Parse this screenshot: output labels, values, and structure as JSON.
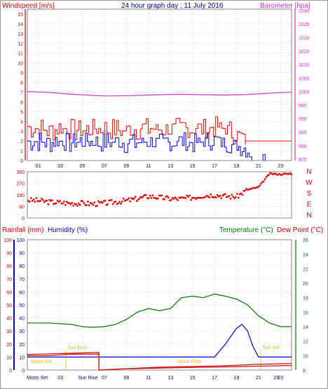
{
  "header": {
    "left_title": "Windspeed [m/s]",
    "center_title": "24 hour graph day : 11 July 2016",
    "right_title": "Barometer [hpa]"
  },
  "bottom_header": {
    "rainfall_label": "Rainfall (mm)",
    "humidity_label": "Humidity (%)",
    "temperature_label": "Temperature (°C)",
    "dewpoint_label": "Dew Point (°C)"
  },
  "colors": {
    "windspeed": "#ff0000",
    "gust": "#ff0000",
    "average_wind": "#0000ff",
    "barometer": "#cc33cc",
    "wind_direction": "#e01010",
    "rainfall": "#cc0000",
    "humidity": "#0000cc",
    "temperature": "#007700",
    "dewpoint": "#cc0000",
    "moon_sun_text": "#ddc000",
    "grid": "#bfbfbf"
  },
  "chart_data": [
    {
      "type": "line",
      "id": "wind-barometer",
      "title": "",
      "x_ticks": [
        "01",
        "03",
        "05",
        "07",
        "09",
        "11",
        "13",
        "15",
        "17",
        "19",
        "21",
        "23"
      ],
      "left_axis": {
        "label": "Windspeed [m/s]",
        "ticks": [
          0,
          1,
          2,
          3,
          4,
          5,
          6,
          7,
          8,
          9,
          10,
          11,
          12,
          13,
          14,
          15
        ],
        "ylim": [
          0,
          15.5
        ]
      },
      "right_axis": {
        "label": "Barometer [hpa]",
        "ticks": [
          975,
          980,
          985,
          990,
          995,
          1000,
          1005,
          1010,
          1015,
          1020,
          1025,
          1030
        ],
        "ylim": [
          974.5,
          1030.5
        ]
      },
      "series": [
        {
          "name": "Gust",
          "axis": "left",
          "hours": [
            0,
            1,
            2,
            3,
            4,
            5,
            6,
            7,
            8,
            9,
            10,
            11,
            12,
            13,
            14,
            15,
            16,
            17,
            18,
            19,
            20,
            21,
            22,
            23,
            24
          ],
          "values": [
            3.5,
            3.2,
            3.0,
            3.3,
            3.2,
            3.0,
            3.2,
            3.4,
            3.1,
            3.0,
            3.2,
            3.3,
            3.1,
            3.2,
            3.4,
            3.3,
            3.2,
            3.5,
            3.2,
            2.5,
            2.0,
            2.0,
            2.0,
            2.0,
            2.0
          ]
        },
        {
          "name": "Average",
          "axis": "left",
          "hours": [
            0,
            1,
            2,
            3,
            4,
            5,
            6,
            7,
            8,
            9,
            10,
            11,
            12,
            13,
            14,
            15,
            16,
            17,
            18,
            19,
            20,
            20.5
          ],
          "values": [
            2.0,
            1.9,
            1.8,
            2.0,
            1.8,
            1.9,
            2.0,
            1.8,
            1.9,
            1.7,
            1.8,
            1.9,
            1.8,
            1.9,
            2.0,
            1.8,
            1.9,
            2.0,
            1.8,
            1.5,
            1.2,
            0
          ]
        },
        {
          "name": "Barometer",
          "axis": "right",
          "hours": [
            0,
            2,
            4,
            6,
            7,
            8,
            9,
            10,
            12,
            14,
            16,
            18,
            20,
            22,
            24
          ],
          "values": [
            1000.0,
            999.7,
            999.0,
            998.6,
            998.4,
            998.4,
            998.5,
            998.6,
            998.8,
            999.0,
            998.8,
            998.7,
            998.9,
            999.4,
            999.8
          ]
        }
      ]
    },
    {
      "type": "scatter",
      "id": "wind-direction",
      "title": "",
      "y_ticks": [
        0,
        90,
        180,
        270,
        360
      ],
      "compass_labels": [
        "N",
        "W",
        "S",
        "E",
        "N"
      ],
      "ylim": [
        0,
        360
      ],
      "hours": [
        0,
        1,
        2,
        3,
        4,
        5,
        6,
        7,
        8,
        9,
        10,
        11,
        12,
        13,
        14,
        15,
        16,
        17,
        18,
        19,
        20,
        21,
        22,
        23,
        24
      ],
      "values": [
        140,
        135,
        125,
        120,
        115,
        115,
        110,
        115,
        125,
        135,
        150,
        170,
        160,
        150,
        150,
        160,
        175,
        180,
        170,
        165,
        220,
        240,
        345,
        340,
        345
      ]
    },
    {
      "type": "line",
      "id": "rain-humidity-temp",
      "title": "",
      "x_ticks": [
        "01",
        "03",
        "05",
        "07",
        "09",
        "11",
        "13",
        "15",
        "17",
        "19",
        "21",
        "23"
      ],
      "left_axis": {
        "label": "Humidity (%)",
        "ticks": [
          0,
          10,
          20,
          30,
          40,
          50,
          60,
          70,
          80,
          90,
          100
        ],
        "ylim": [
          0,
          100
        ]
      },
      "right_axis": {
        "label": "Temperature (°C)",
        "ticks": [
          8,
          10,
          12,
          14,
          16,
          18,
          20,
          22,
          24,
          26
        ],
        "ylim": [
          8,
          26
        ]
      },
      "annotations": [
        {
          "text": "Moon Set",
          "hour": 0.2
        },
        {
          "text": "Sun Rise",
          "hour": 3.5
        },
        {
          "text": "Moon Rise",
          "hour": 13.5
        },
        {
          "text": "Sun Set",
          "hour": 21.2
        }
      ],
      "bottom_tick_labels": [
        "Moon Set",
        "03",
        "Sun Rise",
        "07",
        "09",
        "11",
        "13",
        "15",
        "17",
        "19",
        "21",
        "23"
      ],
      "series": [
        {
          "name": "Rainfall",
          "axis": "left",
          "hours": [
            0,
            6.5,
            6.5,
            9,
            12,
            15,
            18,
            21,
            24
          ],
          "values": [
            12,
            13.5,
            0,
            1,
            1.5,
            2,
            2.5,
            3,
            3.5
          ]
        },
        {
          "name": "Humidity",
          "axis": "left",
          "hours": [
            0,
            17,
            18,
            19,
            19.5,
            20,
            20.5,
            21,
            24
          ],
          "values": [
            10,
            10,
            20,
            32,
            35,
            30,
            18,
            10,
            10
          ]
        },
        {
          "name": "Temperature",
          "axis": "right",
          "hours": [
            0,
            2,
            4,
            5,
            6,
            7,
            8,
            9,
            10,
            11,
            12,
            13,
            14,
            15,
            16,
            17,
            18,
            19,
            20,
            21,
            22,
            23,
            24
          ],
          "values": [
            14.5,
            14.5,
            14.3,
            14.0,
            13.9,
            14.0,
            14.3,
            15.0,
            16.0,
            16.5,
            16.2,
            16.5,
            18.0,
            18.2,
            18.0,
            18.5,
            18.2,
            17.8,
            17.0,
            15.5,
            14.5,
            14.0,
            14.0
          ]
        },
        {
          "name": "Dew Point",
          "axis": "right",
          "hours": [
            0,
            2,
            4,
            6,
            6.5,
            6.5,
            9,
            12,
            15,
            18,
            21,
            24
          ],
          "values": [
            10.0,
            10.0,
            10.2,
            10.2,
            10.2,
            8.0,
            8.2,
            8.4,
            8.5,
            8.6,
            8.8,
            8.9
          ]
        }
      ]
    }
  ]
}
